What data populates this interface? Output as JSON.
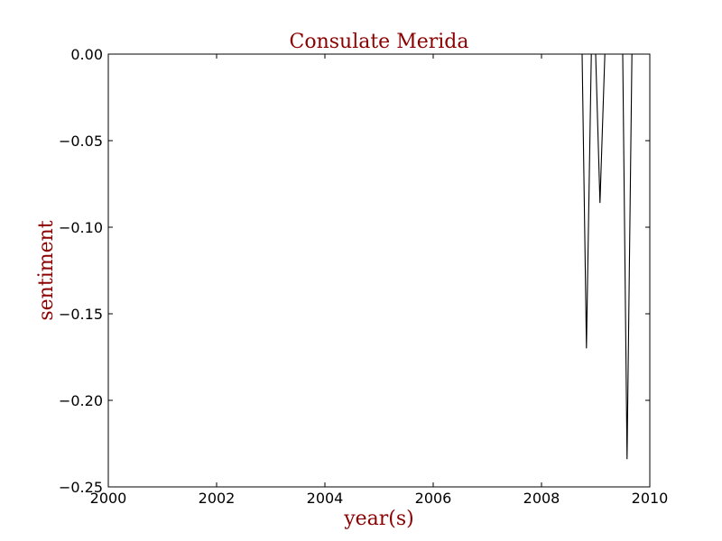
{
  "chart_data": {
    "type": "line",
    "title": "Consulate Merida",
    "xlabel": "year(s)",
    "ylabel": "sentiment",
    "xlim": [
      2000,
      2010
    ],
    "ylim": [
      -0.25,
      0.0
    ],
    "x_ticks": [
      2000,
      2002,
      2004,
      2006,
      2008,
      2010
    ],
    "x_tick_labels": [
      "2000",
      "2002",
      "2004",
      "2006",
      "2008",
      "2010"
    ],
    "y_ticks": [
      0.0,
      -0.05,
      -0.1,
      -0.15,
      -0.2,
      -0.25
    ],
    "y_tick_labels": [
      "0.00",
      "−0.05",
      "−0.10",
      "−0.15",
      "−0.20",
      "−0.25"
    ],
    "grid": false,
    "colors": {
      "title": "#8b0000",
      "axis_labels": "#8b0000",
      "line": "#000000"
    },
    "series": [
      {
        "x": [
          2000.0,
          2008.75,
          2008.83,
          2008.92,
          2009.0,
          2009.08,
          2009.17,
          2009.33,
          2009.5,
          2009.58,
          2009.67,
          2010.0
        ],
        "values": [
          0.0,
          0.0,
          -0.17,
          0.0,
          0.0,
          -0.086,
          0.0,
          0.0,
          0.0,
          -0.234,
          0.0,
          0.0
        ]
      }
    ]
  }
}
